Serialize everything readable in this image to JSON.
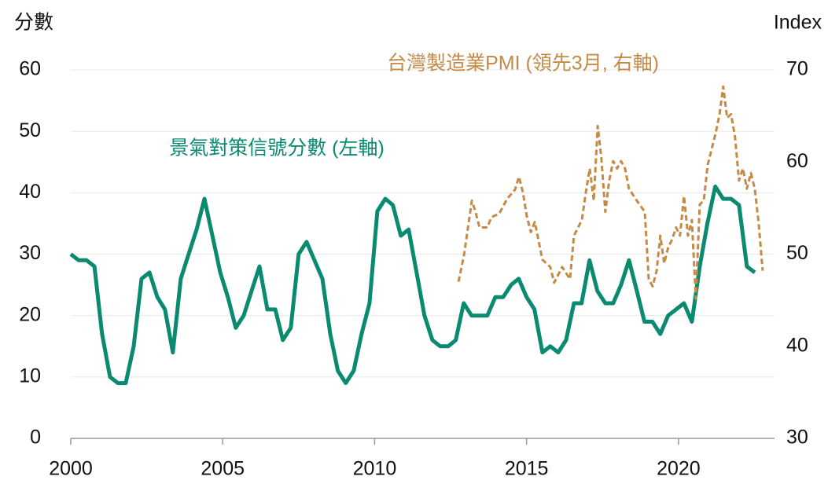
{
  "chart_data": {
    "type": "line",
    "y_label": "分數",
    "y2_label": "Index",
    "xlim": [
      2000,
      2023.16
    ],
    "xticks": [
      2000,
      2005,
      2010,
      2015,
      2020
    ],
    "ylim": [
      0,
      60
    ],
    "yticks": [
      0,
      10,
      20,
      30,
      40,
      50,
      60
    ],
    "y2lim": [
      30,
      70
    ],
    "y2ticks": [
      30,
      40,
      50,
      60,
      70
    ],
    "grid": true,
    "series": [
      {
        "name": "景氣對策信號分數 (左軸)",
        "color": "#0b8a72",
        "line_style": "solid",
        "x": [
          2000.0,
          2000.26,
          2000.52,
          2000.78,
          2001.03,
          2001.29,
          2001.55,
          2001.81,
          2002.07,
          2002.33,
          2002.59,
          2002.85,
          2003.1,
          2003.36,
          2003.62,
          2003.88,
          2004.14,
          2004.4,
          2004.66,
          2004.92,
          2005.17,
          2005.43,
          2005.69,
          2005.95,
          2006.21,
          2006.47,
          2006.73,
          2006.98,
          2007.24,
          2007.5,
          2007.76,
          2008.02,
          2008.28,
          2008.54,
          2008.79,
          2009.05,
          2009.31,
          2009.57,
          2009.83,
          2010.09,
          2010.35,
          2010.6,
          2010.86,
          2011.12,
          2011.38,
          2011.64,
          2011.9,
          2012.16,
          2012.42,
          2012.67,
          2012.93,
          2013.19,
          2013.45,
          2013.71,
          2013.97,
          2014.23,
          2014.49,
          2014.74,
          2015.0,
          2015.26,
          2015.52,
          2015.78,
          2016.04,
          2016.3,
          2016.56,
          2016.81,
          2017.07,
          2017.33,
          2017.59,
          2017.85,
          2018.11,
          2018.37,
          2018.63,
          2018.88,
          2019.14,
          2019.4,
          2019.66,
          2019.92,
          2020.18,
          2020.44,
          2020.7,
          2020.95,
          2021.21,
          2021.47,
          2021.73,
          2021.99,
          2022.25,
          2022.51
        ],
        "values": [
          30,
          29,
          29,
          28,
          17,
          10,
          9,
          9,
          15,
          26,
          27,
          23,
          21,
          14,
          26,
          30,
          34,
          39,
          33,
          27,
          23,
          18,
          20,
          24,
          28,
          21,
          21,
          16,
          18,
          30,
          32,
          29,
          26,
          17,
          11,
          9,
          11,
          17,
          22,
          37,
          39,
          38,
          33,
          34,
          27,
          20,
          16,
          15,
          15,
          16,
          22,
          20,
          20,
          20,
          23,
          23,
          25,
          26,
          23,
          21,
          14,
          15,
          14,
          16,
          22,
          22,
          29,
          24,
          22,
          22,
          25,
          29,
          24,
          19,
          19,
          17,
          20,
          21,
          22,
          19,
          28,
          35,
          41,
          39,
          39,
          38,
          28,
          27
        ]
      },
      {
        "name": "台灣製造業PMI (領先3月, 右軸)",
        "color": "#c48a46",
        "line_style": "dashed",
        "axis": "y2",
        "x": [
          2012.76,
          2012.94,
          2013.2,
          2013.32,
          2013.45,
          2013.71,
          2013.84,
          2014.1,
          2014.36,
          2014.62,
          2014.75,
          2014.88,
          2015.01,
          2015.14,
          2015.27,
          2015.52,
          2015.78,
          2015.91,
          2016.17,
          2016.43,
          2016.56,
          2016.82,
          2016.95,
          2017.08,
          2017.21,
          2017.34,
          2017.46,
          2017.59,
          2017.72,
          2017.85,
          2017.98,
          2018.11,
          2018.24,
          2018.37,
          2018.63,
          2018.89,
          2019.02,
          2019.15,
          2019.28,
          2019.4,
          2019.53,
          2019.66,
          2019.79,
          2019.92,
          2020.05,
          2020.18,
          2020.31,
          2020.44,
          2020.57,
          2020.7,
          2020.83,
          2020.96,
          2021.09,
          2021.22,
          2021.35,
          2021.47,
          2021.6,
          2021.73,
          2021.86,
          2021.99,
          2022.12,
          2022.25,
          2022.38,
          2022.51,
          2022.64,
          2022.77
        ],
        "values": [
          47,
          49.9,
          55.8,
          54.6,
          52.9,
          52.9,
          54,
          54.4,
          56,
          57,
          58.4,
          56.7,
          54.1,
          52.4,
          53.5,
          49.4,
          48.6,
          46.9,
          48.6,
          47.3,
          52,
          53.7,
          56.7,
          59.3,
          55.8,
          63.9,
          60.5,
          54.6,
          58,
          60.1,
          59.3,
          60.1,
          59.3,
          57.1,
          55.8,
          54.6,
          47.3,
          46.5,
          48.2,
          52,
          49,
          50.7,
          51.6,
          52.9,
          52,
          56.3,
          52,
          53.7,
          45.2,
          55.4,
          55.8,
          59.7,
          61.4,
          63.1,
          65.2,
          68.2,
          64.8,
          65.2,
          62.7,
          58,
          59.3,
          57.1,
          58.8,
          57.1,
          53.3,
          48.2
        ]
      }
    ]
  }
}
